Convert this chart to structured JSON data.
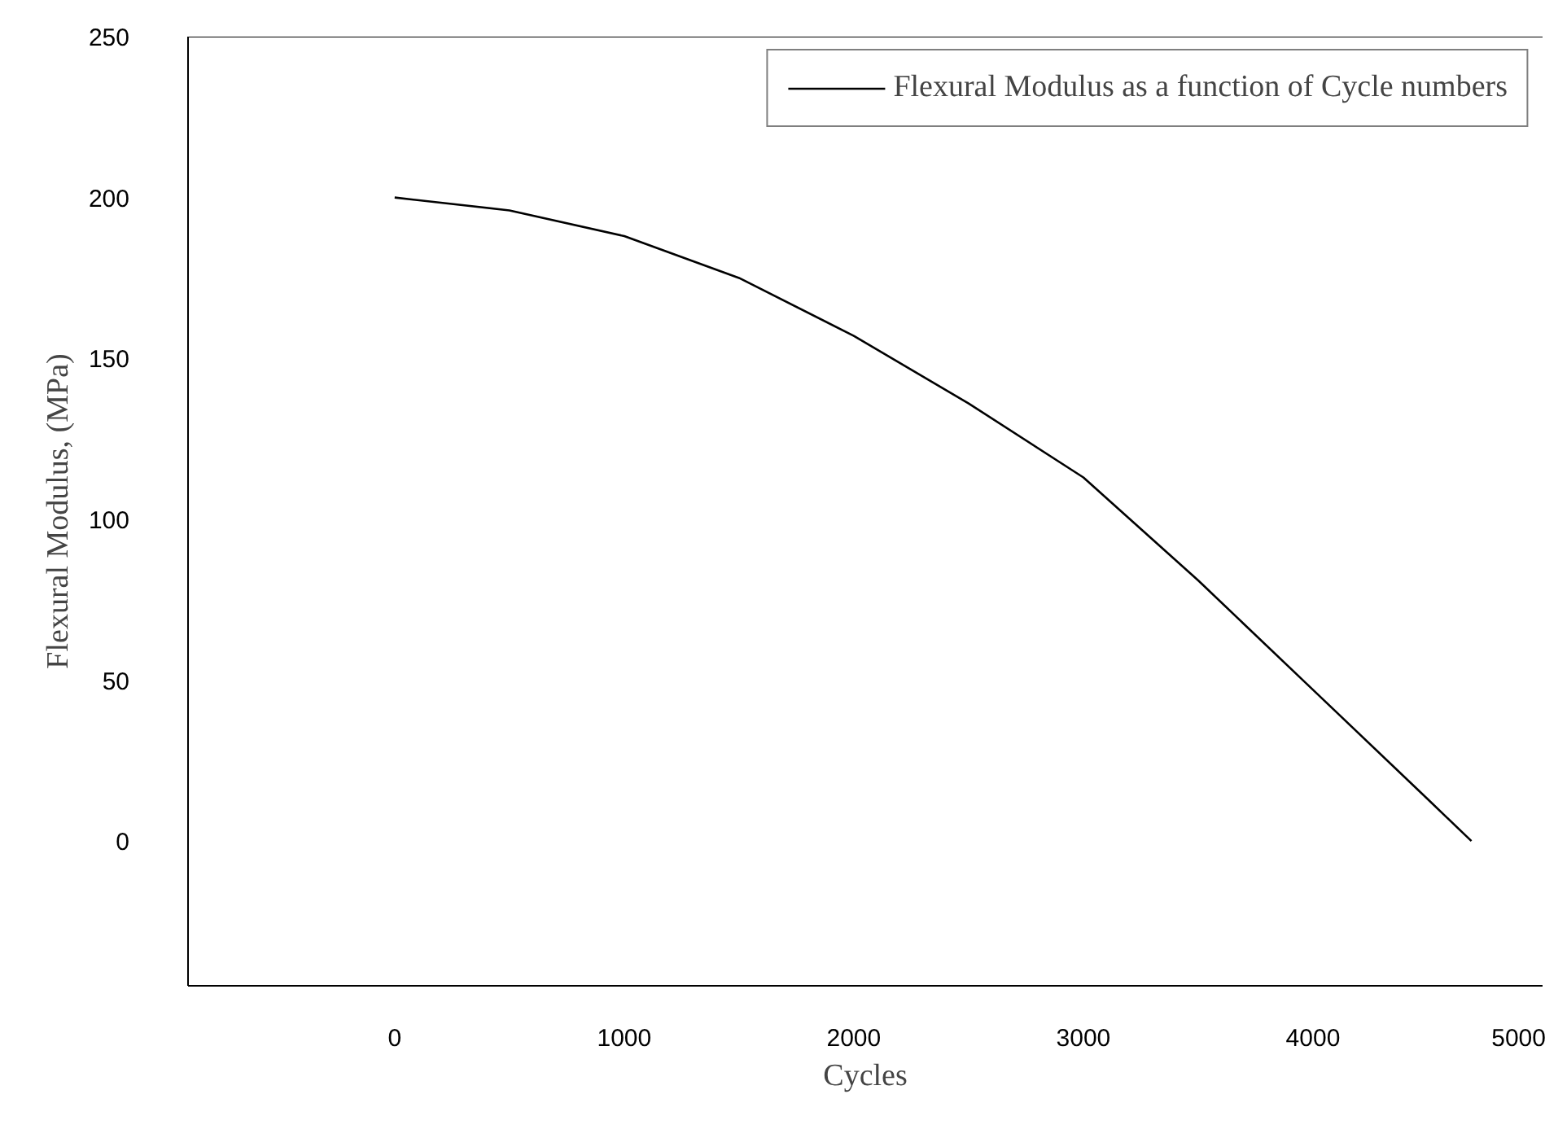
{
  "chart_data": {
    "type": "line",
    "xlabel": "Cycles",
    "ylabel": "Flexural Modulus, (MPa)",
    "xlim": [
      -900,
      5000
    ],
    "ylim": [
      -45,
      250
    ],
    "xticks": [
      0,
      1000,
      2000,
      3000,
      4000,
      5000
    ],
    "yticks": [
      0,
      50,
      100,
      150,
      200,
      250
    ],
    "grid": false,
    "legend": "top right",
    "series": [
      {
        "name": "Flexural Modulus as a function of Cycle numbers",
        "color": "#000000",
        "x": [
          0,
          500,
          1000,
          1500,
          2000,
          2500,
          3000,
          3500,
          4000,
          4500,
          4690
        ],
        "values": [
          200,
          196,
          188,
          175,
          157,
          136,
          113,
          81,
          47,
          13,
          0
        ]
      }
    ]
  }
}
